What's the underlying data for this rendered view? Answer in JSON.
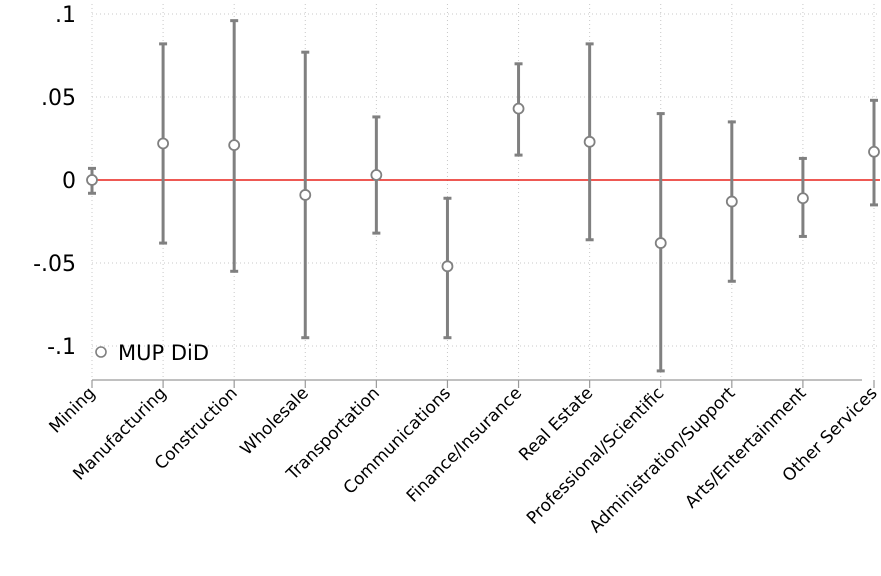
{
  "chart_data": {
    "type": "errorbar",
    "title": "",
    "xlabel": "",
    "ylabel": "",
    "ylim": [
      -0.12,
      0.1
    ],
    "yticks": [
      -0.1,
      -0.05,
      0,
      0.05,
      0.1
    ],
    "ytick_labels": [
      "-.1",
      "-.05",
      "0",
      ".05",
      ".1"
    ],
    "grid": true,
    "reference_line": {
      "y": 0,
      "color": "#e8221b"
    },
    "legend": {
      "position": "bottom-left",
      "entries": [
        "MUP DiD"
      ]
    },
    "categories": [
      "Mining",
      "Manufacturing",
      "Construction",
      "Wholesale",
      "Transportation",
      "Communications",
      "Finance/Insurance",
      "Real Estate",
      "Professional/Scientific",
      "Administration/Support",
      "Arts/Entertainment",
      "Other Services"
    ],
    "series": [
      {
        "name": "MUP DiD",
        "color": "#808080",
        "estimate": [
          0.0,
          0.022,
          0.021,
          -0.009,
          0.003,
          -0.052,
          0.043,
          0.023,
          -0.038,
          -0.013,
          -0.011,
          0.017
        ],
        "lower": [
          -0.008,
          -0.038,
          -0.055,
          -0.095,
          -0.032,
          -0.095,
          0.015,
          -0.036,
          -0.115,
          -0.061,
          -0.034,
          -0.015
        ],
        "upper": [
          0.007,
          0.082,
          0.096,
          0.077,
          0.038,
          -0.011,
          0.07,
          0.082,
          0.04,
          0.035,
          0.013,
          0.048
        ]
      }
    ]
  }
}
